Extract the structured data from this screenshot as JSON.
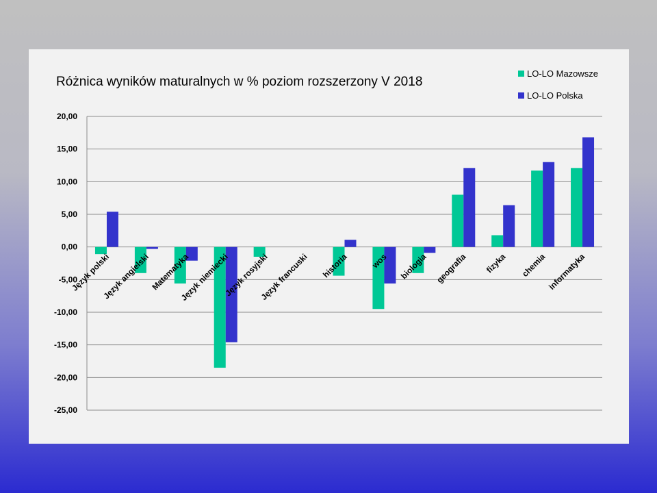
{
  "chart_data": {
    "type": "bar",
    "title": "Różnica wyników maturalnych w % poziom rozszerzony V 2018",
    "categories": [
      "Język polski",
      "Język angielski",
      "Matematyka",
      "Język niemiecki",
      "Język rosyjski",
      "Język francuski",
      "historia",
      "wos",
      "biologia",
      "geografia",
      "fizyka",
      "chemia",
      "informatyka"
    ],
    "series": [
      {
        "name": "LO-LO Mazowsze",
        "color": "#00c896",
        "values": [
          -1.1,
          -4.0,
          -5.6,
          -18.5,
          -1.5,
          0,
          -4.4,
          -9.5,
          -4.0,
          8.0,
          1.8,
          11.7,
          12.1
        ]
      },
      {
        "name": "LO-LO Polska",
        "color": "#3333cc",
        "values": [
          5.4,
          -0.3,
          -2.1,
          -14.6,
          0,
          0,
          1.1,
          -5.6,
          -0.9,
          12.1,
          6.4,
          13.0,
          16.8
        ]
      }
    ],
    "ylim": [
      -25,
      20
    ],
    "yticks": [
      "20,00",
      "15,00",
      "10,00",
      "5,00",
      "0,00",
      "-5,00",
      "-10,00",
      "-15,00",
      "-20,00",
      "-25,00"
    ],
    "ytick_values": [
      20,
      15,
      10,
      5,
      0,
      -5,
      -10,
      -15,
      -20,
      -25
    ],
    "grid": true,
    "legend_position": "top-right"
  }
}
